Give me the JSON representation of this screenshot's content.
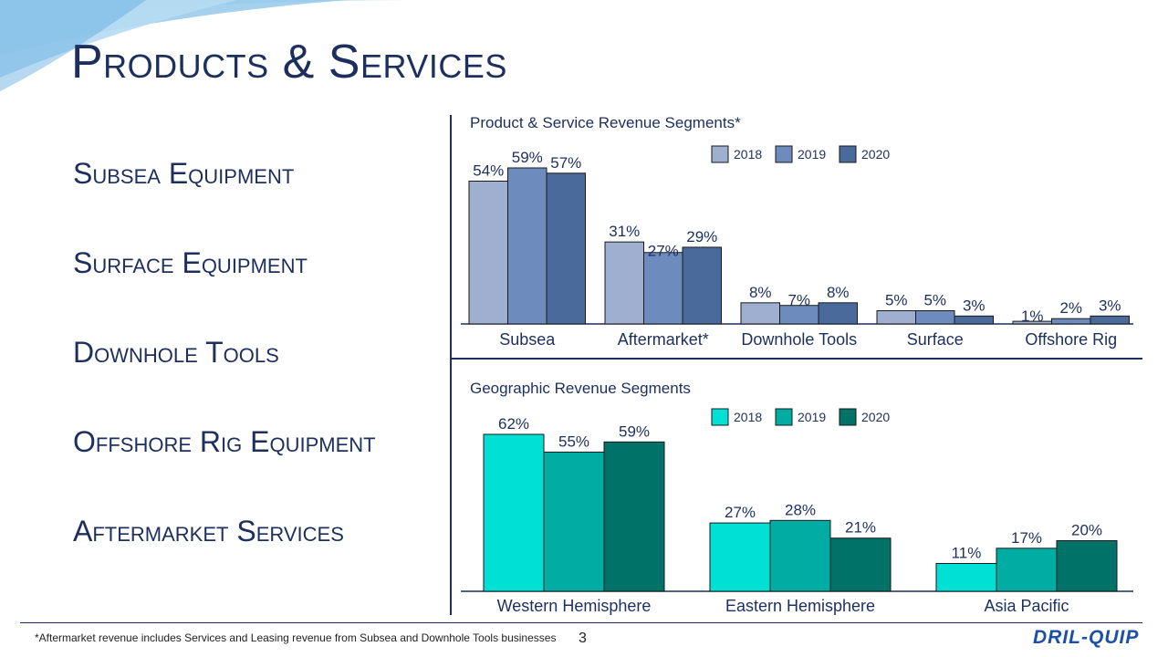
{
  "title": "Products & Services",
  "segments": [
    "Subsea Equipment",
    "Surface Equipment",
    "Downhole Tools",
    "Offshore Rig Equipment",
    "Aftermarket Services"
  ],
  "footnote": "*Aftermarket revenue includes Services and Leasing revenue from Subsea and Downhole Tools businesses",
  "page_number": "3",
  "logo_text": "DRIL-QUIP",
  "chart_data": [
    {
      "type": "bar",
      "title": "Product & Service Revenue Segments*",
      "categories": [
        "Subsea",
        "Aftermarket*",
        "Downhole Tools",
        "Surface",
        "Offshore Rig"
      ],
      "series": [
        {
          "name": "2018",
          "values": [
            54,
            31,
            8,
            5,
            1
          ],
          "color": "#9eafcf"
        },
        {
          "name": "2019",
          "values": [
            59,
            27,
            7,
            5,
            2
          ],
          "color": "#6e8bbd"
        },
        {
          "name": "2020",
          "values": [
            57,
            29,
            8,
            3,
            3
          ],
          "color": "#4a6a9c"
        }
      ],
      "value_suffix": "%",
      "ylim": [
        0,
        59
      ],
      "legend": "top",
      "grid": false
    },
    {
      "type": "bar",
      "title": "Geographic Revenue Segments",
      "categories": [
        "Western Hemisphere",
        "Eastern Hemisphere",
        "Asia Pacific"
      ],
      "series": [
        {
          "name": "2018",
          "values": [
            62,
            27,
            11
          ],
          "color": "#00e0d4"
        },
        {
          "name": "2019",
          "values": [
            55,
            28,
            17
          ],
          "color": "#00ada3"
        },
        {
          "name": "2020",
          "values": [
            59,
            21,
            20
          ],
          "color": "#007268"
        }
      ],
      "value_suffix": "%",
      "ylim": [
        0,
        62
      ],
      "legend": "top",
      "grid": false
    }
  ]
}
